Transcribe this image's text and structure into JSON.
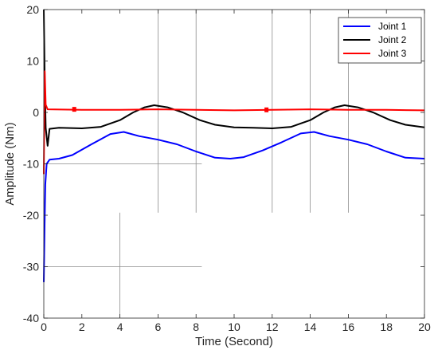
{
  "chart_data": {
    "type": "line",
    "title": "",
    "xlabel": "Time (Second)",
    "ylabel": "Amplitude (Nm)",
    "xlim": [
      0,
      20
    ],
    "ylim": [
      -40,
      20
    ],
    "xticks": [
      "0",
      "2",
      "4",
      "6",
      "8",
      "10",
      "12",
      "14",
      "16",
      "18",
      "20"
    ],
    "yticks": [
      "-40",
      "-30",
      "-20",
      "-10",
      "0",
      "10",
      "20"
    ],
    "grid": false,
    "legend_position": "top-right",
    "guide_lines": {
      "vertical": [
        {
          "x": 4,
          "y_range": [
            -40,
            -19.5
          ]
        },
        {
          "x": 6,
          "y_range": [
            -19.5,
            20
          ]
        },
        {
          "x": 8,
          "y_range": [
            -19.5,
            20
          ]
        },
        {
          "x": 12,
          "y_range": [
            -19.5,
            20
          ]
        },
        {
          "x": 14,
          "y_range": [
            -19.5,
            20
          ]
        },
        {
          "x": 16,
          "y_range": [
            -19.5,
            20
          ]
        }
      ],
      "horizontal": [
        {
          "y": -10,
          "x_range": [
            0,
            8.3
          ]
        },
        {
          "y": -30,
          "x_range": [
            0,
            8.3
          ]
        }
      ]
    },
    "series": [
      {
        "name": "Joint 1",
        "color": "#0000ff",
        "points": [
          [
            0,
            -33
          ],
          [
            0.04,
            -22
          ],
          [
            0.08,
            -14
          ],
          [
            0.15,
            -10
          ],
          [
            0.3,
            -9.2
          ],
          [
            0.8,
            -9.0
          ],
          [
            1.5,
            -8.3
          ],
          [
            2.5,
            -6.2
          ],
          [
            3.5,
            -4.2
          ],
          [
            4.2,
            -3.8
          ],
          [
            5.0,
            -4.6
          ],
          [
            6.0,
            -5.3
          ],
          [
            7.0,
            -6.2
          ],
          [
            8.0,
            -7.6
          ],
          [
            9.0,
            -8.8
          ],
          [
            9.8,
            -9.0
          ],
          [
            10.5,
            -8.7
          ],
          [
            11.5,
            -7.4
          ],
          [
            12.5,
            -5.8
          ],
          [
            13.5,
            -4.1
          ],
          [
            14.2,
            -3.8
          ],
          [
            15.0,
            -4.6
          ],
          [
            16.0,
            -5.3
          ],
          [
            17.0,
            -6.2
          ],
          [
            18.0,
            -7.6
          ],
          [
            19.0,
            -8.8
          ],
          [
            20,
            -9.0
          ]
        ]
      },
      {
        "name": "Joint 2",
        "color": "#000000",
        "points": [
          [
            0,
            20
          ],
          [
            0.05,
            6
          ],
          [
            0.1,
            -3
          ],
          [
            0.2,
            -6.5
          ],
          [
            0.3,
            -3.2
          ],
          [
            0.8,
            -3.0
          ],
          [
            2.0,
            -3.1
          ],
          [
            3.0,
            -2.8
          ],
          [
            4.0,
            -1.5
          ],
          [
            4.7,
            0.0
          ],
          [
            5.3,
            1.0
          ],
          [
            5.8,
            1.4
          ],
          [
            6.5,
            1.0
          ],
          [
            7.3,
            0.0
          ],
          [
            8.2,
            -1.5
          ],
          [
            9.0,
            -2.4
          ],
          [
            10.0,
            -2.9
          ],
          [
            11.0,
            -3.0
          ],
          [
            12.0,
            -3.1
          ],
          [
            13.0,
            -2.8
          ],
          [
            14.0,
            -1.5
          ],
          [
            14.7,
            0.0
          ],
          [
            15.3,
            1.0
          ],
          [
            15.8,
            1.4
          ],
          [
            16.5,
            1.0
          ],
          [
            17.3,
            0.0
          ],
          [
            18.2,
            -1.5
          ],
          [
            19.0,
            -2.4
          ],
          [
            20,
            -2.9
          ]
        ]
      },
      {
        "name": "Joint 3",
        "color": "#ff0000",
        "points": [
          [
            0,
            -12
          ],
          [
            0.05,
            8
          ],
          [
            0.1,
            1.5
          ],
          [
            0.2,
            0.6
          ],
          [
            2,
            0.5
          ],
          [
            4,
            0.5
          ],
          [
            6,
            0.6
          ],
          [
            8,
            0.5
          ],
          [
            10,
            0.4
          ],
          [
            12,
            0.5
          ],
          [
            14,
            0.6
          ],
          [
            16,
            0.5
          ],
          [
            18,
            0.5
          ],
          [
            20,
            0.4
          ]
        ],
        "marker_points": [
          [
            1.6,
            0.6
          ],
          [
            11.7,
            0.5
          ]
        ]
      }
    ]
  }
}
